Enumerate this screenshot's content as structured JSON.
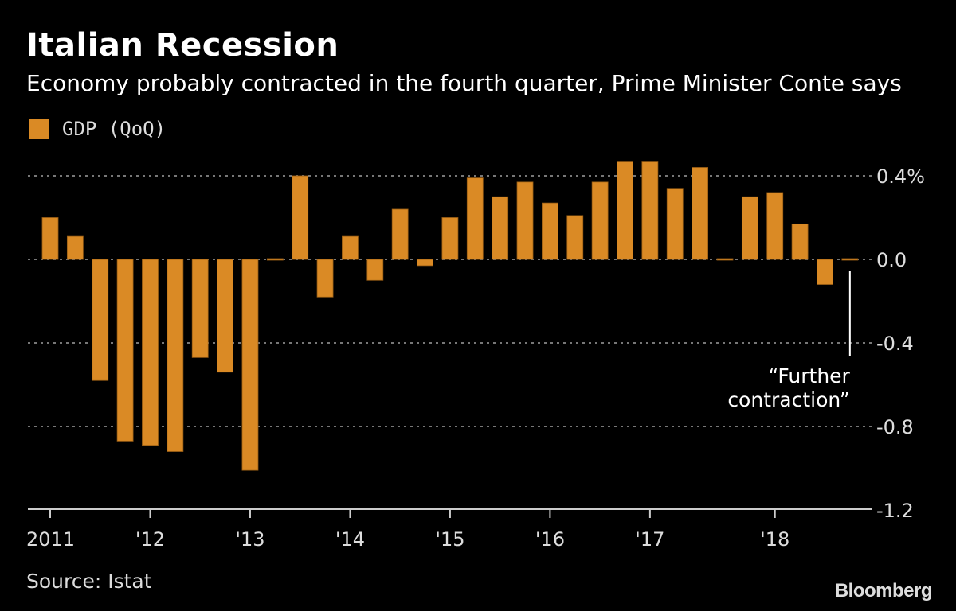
{
  "header": {
    "title": "Italian Recession",
    "subtitle": "Economy probably contracted in the fourth quarter, Prime Minister Conte says"
  },
  "footer": {
    "source": "Source: Istat",
    "logo": "Bloomberg"
  },
  "colors": {
    "bar": "#DA8A25",
    "grid": "#777777",
    "axis": "#cccccc",
    "background": "#000000"
  },
  "chart_data": {
    "type": "bar",
    "title": "Italian Recession",
    "subtitle": "Economy probably contracted in the fourth quarter, Prime Minister Conte says",
    "legend": {
      "position": "top-left",
      "entries": [
        "GDP (QoQ)"
      ]
    },
    "series": [
      {
        "name": "GDP (QoQ)",
        "values": [
          0.2,
          0.11,
          -0.58,
          -0.87,
          -0.89,
          -0.92,
          -0.47,
          -0.54,
          -1.01,
          0.0,
          0.4,
          -0.18,
          0.11,
          -0.1,
          0.24,
          -0.03,
          0.2,
          0.39,
          0.3,
          0.37,
          0.27,
          0.21,
          0.37,
          0.47,
          0.47,
          0.34,
          0.44,
          0.0,
          0.3,
          0.32,
          0.17,
          -0.12,
          0.0
        ]
      }
    ],
    "x_ticks": [
      {
        "label": "2011",
        "index": 0
      },
      {
        "label": "'12",
        "index": 4
      },
      {
        "label": "'13",
        "index": 8
      },
      {
        "label": "'14",
        "index": 12
      },
      {
        "label": "'15",
        "index": 16
      },
      {
        "label": "'16",
        "index": 20
      },
      {
        "label": "'17",
        "index": 24
      },
      {
        "label": "'18",
        "index": 29
      }
    ],
    "y_ticks": [
      {
        "value": 0.4,
        "label": "0.4%"
      },
      {
        "value": 0.0,
        "label": "0.0"
      },
      {
        "value": -0.4,
        "label": "-0.4"
      },
      {
        "value": -0.8,
        "label": "-0.8"
      },
      {
        "value": -1.2,
        "label": "-1.2"
      }
    ],
    "ylim": [
      -1.2,
      0.5
    ],
    "grid": true,
    "annotation": {
      "index": 32,
      "lines": [
        "“Further",
        "contraction”"
      ]
    }
  }
}
